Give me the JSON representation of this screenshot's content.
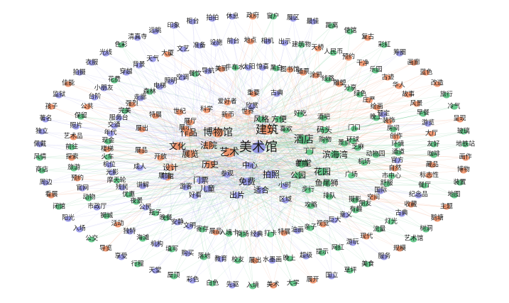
{
  "colors": {
    "orange": "#f08a5d",
    "purple": "#8e8ee8",
    "green": "#4fbf7a",
    "edge": "#b9b6d8"
  },
  "nodes": [
    {
      "label": "美术馆",
      "group": "purple",
      "w": 6
    },
    {
      "label": "建筑",
      "group": "orange",
      "w": 5
    },
    {
      "label": "艺术",
      "group": "orange",
      "w": 4
    },
    {
      "label": "博物馆",
      "group": "orange",
      "w": 4
    },
    {
      "label": "酒店",
      "group": "green",
      "w": 4
    },
    {
      "label": "作品",
      "group": "orange",
      "w": 3
    },
    {
      "label": "文化",
      "group": "orange",
      "w": 3
    },
    {
      "label": "法院",
      "group": "orange",
      "w": 3
    },
    {
      "label": "展览",
      "group": "orange",
      "w": 3
    },
    {
      "label": "历史",
      "group": "orange",
      "w": 3
    },
    {
      "label": "拍照",
      "group": "purple",
      "w": 3
    },
    {
      "label": "免费",
      "group": "purple",
      "w": 3
    },
    {
      "label": "滨海湾",
      "group": "green",
      "w": 3
    },
    {
      "label": "花园",
      "group": "green",
      "w": 3
    },
    {
      "label": "中心",
      "group": "purple",
      "w": 2
    },
    {
      "label": "公园",
      "group": "green",
      "w": 2
    },
    {
      "label": "教堂",
      "group": "green",
      "w": 2
    },
    {
      "label": "鱼尾狮",
      "group": "green",
      "w": 2
    },
    {
      "label": "适合",
      "group": "purple",
      "w": 2
    },
    {
      "label": "出片",
      "group": "purple",
      "w": 2
    },
    {
      "label": "门票",
      "group": "purple",
      "w": 2
    },
    {
      "label": "设计",
      "group": "orange",
      "w": 2
    },
    {
      "label": "儿童",
      "group": "purple",
      "w": 2
    },
    {
      "label": "展馆",
      "group": "orange",
      "w": 1
    },
    {
      "label": "参观",
      "group": "purple",
      "w": 1
    },
    {
      "label": "风格",
      "group": "green",
      "w": 2
    },
    {
      "label": "方便",
      "group": "green",
      "w": 2
    },
    {
      "label": "喜欢",
      "group": "green",
      "w": 1
    },
    {
      "label": "码头",
      "group": "green",
      "w": 2
    },
    {
      "label": "酒吧",
      "group": "green",
      "w": 1
    },
    {
      "label": "好吃",
      "group": "green",
      "w": 1
    },
    {
      "label": "购物",
      "group": "green",
      "w": 1
    },
    {
      "label": "景点",
      "group": "green",
      "w": 1
    },
    {
      "label": "丁丁",
      "group": "green",
      "w": 1
    },
    {
      "label": "芝麻",
      "group": "green",
      "w": 1
    },
    {
      "label": "机场",
      "group": "green",
      "w": 1
    },
    {
      "label": "环球",
      "group": "green",
      "w": 1
    },
    {
      "label": "动物园",
      "group": "green",
      "w": 1
    },
    {
      "label": "广场",
      "group": "green",
      "w": 1
    },
    {
      "label": "摄影",
      "group": "green",
      "w": 1
    },
    {
      "label": "门口",
      "group": "green",
      "w": 1
    },
    {
      "label": "晚上",
      "group": "green",
      "w": 1
    },
    {
      "label": "古典",
      "group": "purple",
      "w": 1
    },
    {
      "label": "欣赏",
      "group": "purple",
      "w": 1
    },
    {
      "label": "世界",
      "group": "orange",
      "w": 1
    },
    {
      "label": "新币",
      "group": "orange",
      "w": 1
    },
    {
      "label": "科学",
      "group": "orange",
      "w": 1
    },
    {
      "label": "世纪",
      "group": "orange",
      "w": 1
    },
    {
      "label": "爱好者",
      "group": "orange",
      "w": 1
    },
    {
      "label": "重要",
      "group": "orange",
      "w": 1
    },
    {
      "label": "展厅",
      "group": "orange",
      "w": 1
    },
    {
      "label": "展示",
      "group": "orange",
      "w": 1
    },
    {
      "label": "展出",
      "group": "orange",
      "w": 1
    },
    {
      "label": "特展",
      "group": "orange",
      "w": 1
    },
    {
      "label": "开放",
      "group": "orange",
      "w": 1
    },
    {
      "label": "展品",
      "group": "orange",
      "w": 1
    },
    {
      "label": "成人",
      "group": "purple",
      "w": 1
    },
    {
      "label": "游客",
      "group": "purple",
      "w": 1
    },
    {
      "label": "好看",
      "group": "purple",
      "w": 1
    },
    {
      "label": "讲解",
      "group": "purple",
      "w": 1
    },
    {
      "label": "展馆2",
      "group": "purple",
      "w": 1
    },
    {
      "label": "小时",
      "group": "purple",
      "w": 1
    },
    {
      "label": "区域",
      "group": "purple",
      "w": 1
    },
    {
      "label": "步行",
      "group": "green",
      "w": 1
    },
    {
      "label": "排队",
      "group": "green",
      "w": 1
    },
    {
      "label": "提前",
      "group": "green",
      "w": 1
    },
    {
      "label": "攻略",
      "group": "green",
      "w": 1
    }
  ],
  "labels": [
    [
      "政府",
      "orange"
    ],
    [
      "相机",
      "purple"
    ],
    [
      "黑白",
      "green"
    ],
    [
      "窗户",
      "green"
    ],
    [
      "出示",
      "purple"
    ],
    [
      "图书馆",
      "orange"
    ],
    [
      "展区",
      "purple"
    ],
    [
      "建筑物",
      "green"
    ],
    [
      "通票",
      "orange"
    ],
    [
      "最佳",
      "purple"
    ],
    [
      "天桥",
      "orange"
    ],
    [
      "涂鸦",
      "orange"
    ],
    [
      "距离",
      "green"
    ],
    [
      "人民币",
      "green"
    ],
    [
      "线路",
      "green"
    ],
    [
      "使馆",
      "green"
    ],
    [
      "预约",
      "orange"
    ],
    [
      "雕塑",
      "orange"
    ],
    [
      "复古",
      "orange"
    ],
    [
      "干净",
      "orange"
    ],
    [
      "分享",
      "green"
    ],
    [
      "彩虹",
      "green"
    ],
    [
      "乐园",
      "green"
    ],
    [
      "绿色",
      "green"
    ],
    [
      "筹圈",
      "purple"
    ],
    [
      "古迹",
      "orange"
    ],
    [
      "庄严",
      "orange"
    ],
    [
      "画廊",
      "orange"
    ],
    [
      "华人",
      "orange"
    ],
    [
      "绘画",
      "orange"
    ],
    [
      "蓝色",
      "orange"
    ],
    [
      "故事",
      "orange"
    ],
    [
      "预定",
      "purple"
    ],
    [
      "改造",
      "orange"
    ],
    [
      "风景",
      "orange"
    ],
    [
      "装饰",
      "orange"
    ],
    [
      "旅行",
      "green"
    ],
    [
      "早餐",
      "green"
    ],
    [
      "房间",
      "green"
    ],
    [
      "冷气",
      "green"
    ],
    [
      "游览",
      "purple"
    ],
    [
      "创作",
      "orange"
    ],
    [
      "呈现",
      "orange"
    ],
    [
      "大厅",
      "orange"
    ],
    [
      "环境",
      "green"
    ],
    [
      "玻璃",
      "green"
    ],
    [
      "友好",
      "green"
    ],
    [
      "通道",
      "green"
    ],
    [
      "地铁站",
      "green"
    ],
    [
      "咖啡",
      "green"
    ],
    [
      "官方",
      "purple"
    ],
    [
      "画作",
      "orange"
    ],
    [
      "藏品",
      "orange"
    ],
    [
      "自然",
      "orange"
    ],
    [
      "博物",
      "orange"
    ],
    [
      "标志性",
      "orange"
    ],
    [
      "市中心",
      "green"
    ],
    [
      "装置",
      "green"
    ],
    [
      "餐厅",
      "green"
    ],
    [
      "舒服",
      "green"
    ],
    [
      "地图",
      "green"
    ],
    [
      "纪念品",
      "purple"
    ],
    [
      "国际",
      "purple"
    ],
    [
      "主题",
      "orange"
    ],
    [
      "收藏",
      "orange"
    ],
    [
      "空间",
      "orange"
    ],
    [
      "鹅塘",
      "orange"
    ],
    [
      "古典2",
      "purple"
    ],
    [
      "朋友",
      "green"
    ],
    [
      "树洞",
      "green"
    ],
    [
      "灯光",
      "green"
    ],
    [
      "有趣",
      "green"
    ],
    [
      "艺术馆",
      "green"
    ],
    [
      "流量",
      "green"
    ],
    [
      "意义",
      "purple"
    ],
    [
      "规模",
      "orange"
    ],
    [
      "现代",
      "orange"
    ],
    [
      "巨大",
      "purple"
    ],
    [
      "服务",
      "purple"
    ],
    [
      "游玩",
      "purple"
    ],
    [
      "视觉",
      "orange"
    ],
    [
      "美食",
      "green"
    ],
    [
      "网红",
      "green"
    ],
    [
      "亲子",
      "green"
    ],
    [
      "草坪",
      "green"
    ],
    [
      "提示",
      "green"
    ],
    [
      "油画",
      "purple"
    ],
    [
      "国立",
      "purple"
    ],
    [
      "超级",
      "purple"
    ],
    [
      "特展2",
      "orange"
    ],
    [
      "展开",
      "orange"
    ],
    [
      "晚上2",
      "green"
    ],
    [
      "打卡",
      "green"
    ],
    [
      "大学",
      "green"
    ],
    [
      "水墨画",
      "purple"
    ],
    [
      "经典",
      "purple"
    ],
    [
      "美术",
      "orange"
    ],
    [
      "展出2",
      "orange"
    ],
    [
      "商场",
      "green"
    ],
    [
      "入境",
      "green"
    ],
    [
      "校友",
      "green"
    ],
    [
      "入境卡",
      "green"
    ],
    [
      "先驱",
      "purple"
    ],
    [
      "教育",
      "purple"
    ],
    [
      "展品2",
      "orange"
    ],
    [
      "白色",
      "green"
    ],
    [
      "落地",
      "green"
    ],
    [
      "寄存",
      "green"
    ],
    [
      "彩色",
      "purple"
    ],
    [
      "购买",
      "purple"
    ],
    [
      "文明",
      "purple"
    ],
    [
      "屋顶",
      "green"
    ],
    [
      "填写",
      "green"
    ],
    [
      "安静",
      "purple"
    ],
    [
      "天堂",
      "purple"
    ],
    [
      "机构",
      "purple"
    ],
    [
      "晚餐",
      "green"
    ],
    [
      "行程",
      "green"
    ],
    [
      "海滩",
      "green"
    ],
    [
      "瓶子",
      "green"
    ],
    [
      "享受",
      "purple"
    ],
    [
      "独特",
      "purple"
    ],
    [
      "公民",
      "purple"
    ],
    [
      "导览",
      "orange"
    ],
    [
      "活动",
      "orange"
    ],
    [
      "夜景",
      "green"
    ],
    [
      "公交",
      "green"
    ],
    [
      "狮城",
      "green"
    ],
    [
      "优惠",
      "green"
    ],
    [
      "入场",
      "purple"
    ],
    [
      "市政厅",
      "purple"
    ],
    [
      "残民",
      "purple"
    ],
    [
      "阳光",
      "purple"
    ],
    [
      "动物",
      "green"
    ],
    [
      "摩天轮",
      "green"
    ],
    [
      "闭馆",
      "green"
    ],
    [
      "官网",
      "purple"
    ],
    [
      "光影",
      "purple"
    ],
    [
      "看展",
      "orange"
    ],
    [
      "预约2",
      "orange"
    ],
    [
      "机位",
      "purple"
    ],
    [
      "周边",
      "purple"
    ],
    [
      "旅游",
      "green"
    ],
    [
      "火车",
      "green"
    ],
    [
      "商店",
      "green"
    ],
    [
      "探索",
      "orange"
    ],
    [
      "楼梯",
      "orange"
    ],
    [
      "风情",
      "green"
    ],
    [
      "前往",
      "green"
    ],
    [
      "现金",
      "green"
    ],
    [
      "佩戴",
      "purple"
    ],
    [
      "艺术品",
      "orange"
    ],
    [
      "年代",
      "purple"
    ],
    [
      "独立",
      "purple"
    ],
    [
      "照片",
      "purple"
    ],
    [
      "交通",
      "purple"
    ],
    [
      "著名",
      "purple"
    ],
    [
      "保留",
      "green"
    ],
    [
      "服务台",
      "purple"
    ],
    [
      "孩子",
      "orange"
    ],
    [
      "公共",
      "orange"
    ],
    [
      "完美",
      "green"
    ],
    [
      "监狱",
      "purple"
    ],
    [
      "台阶",
      "purple"
    ],
    [
      "强烈",
      "orange"
    ],
    [
      "佳能",
      "orange"
    ],
    [
      "小朋友",
      "purple"
    ],
    [
      "走廊",
      "purple"
    ],
    [
      "拍摄",
      "purple"
    ],
    [
      "花费",
      "green"
    ],
    [
      "森林",
      "green"
    ],
    [
      "衣服",
      "purple"
    ],
    [
      "穿越",
      "purple"
    ],
    [
      "电梯",
      "purple"
    ],
    [
      "光线",
      "purple"
    ],
    [
      "背景",
      "purple"
    ],
    [
      "照明",
      "purple"
    ],
    [
      "色彩",
      "green"
    ],
    [
      "天气",
      "purple"
    ],
    [
      "空调",
      "purple"
    ],
    [
      "清真寺",
      "purple"
    ],
    [
      "大厦",
      "orange"
    ],
    [
      "餐饮",
      "green"
    ],
    [
      "远眺",
      "purple"
    ],
    [
      "文艺",
      "purple"
    ],
    [
      "导航",
      "purple"
    ],
    [
      "印象",
      "purple"
    ],
    [
      "准备",
      "purple"
    ],
    [
      "美丽",
      "orange"
    ],
    [
      "柜台",
      "purple"
    ],
    [
      "设施",
      "purple"
    ],
    [
      "牛车水",
      "green"
    ],
    [
      "拍拍",
      "purple"
    ],
    [
      "前台",
      "purple"
    ],
    [
      "太阳",
      "purple"
    ],
    [
      "休息",
      "purple"
    ],
    [
      "地点",
      "orange"
    ],
    [
      "惊喜",
      "purple"
    ]
  ]
}
